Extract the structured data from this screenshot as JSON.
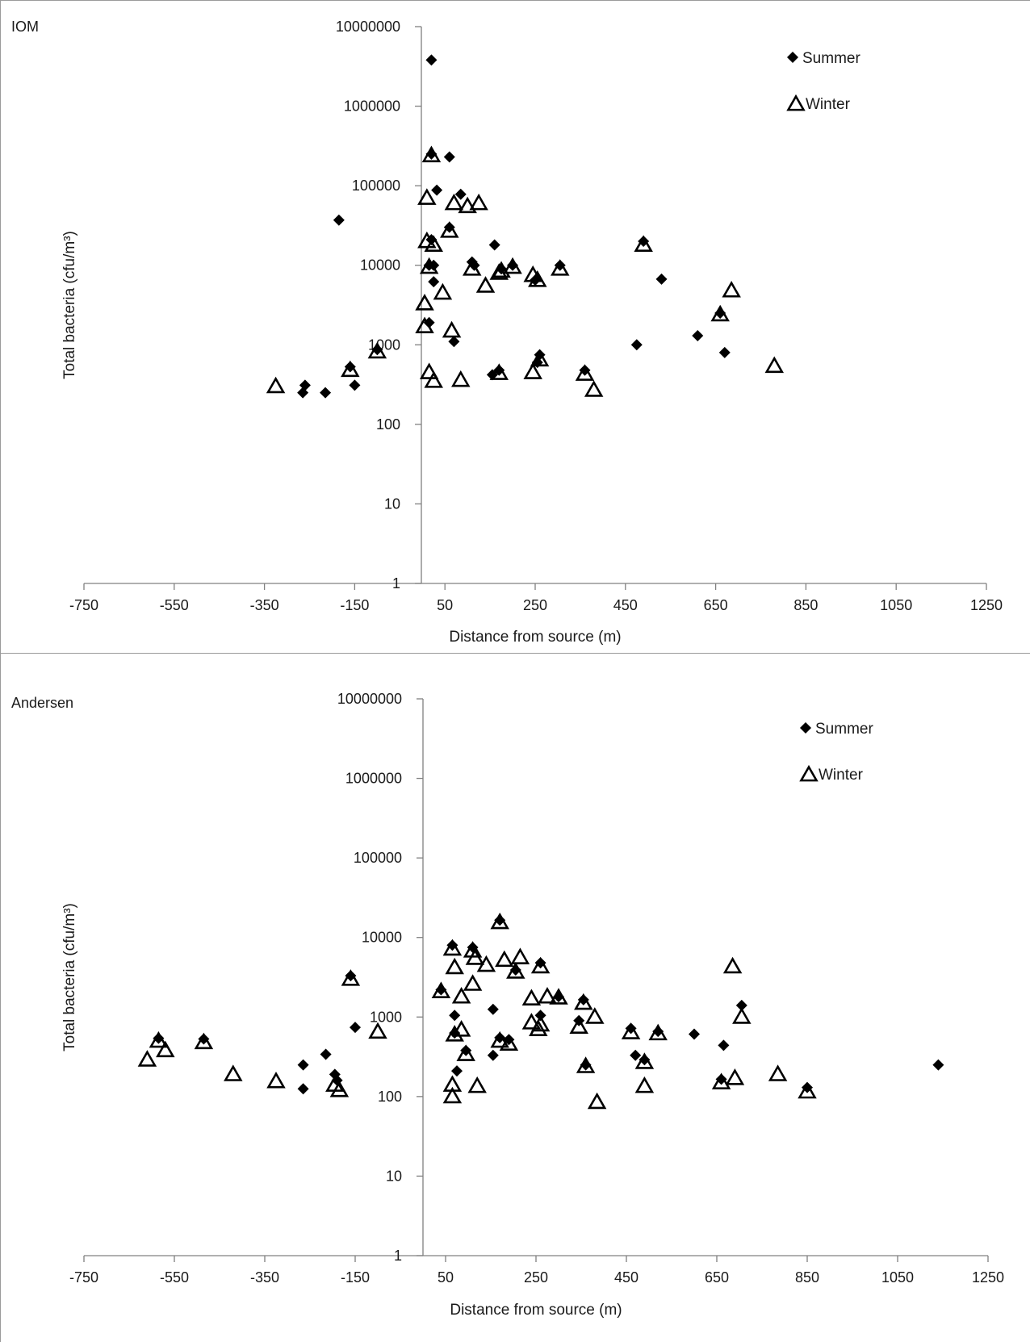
{
  "chart_data": [
    {
      "type": "scatter",
      "panel_label": "IOM",
      "xlabel": "Distance from source (m)",
      "ylabel": "Total bacteria (cfu/m³)",
      "y_scale": "log",
      "xlim": [
        -750,
        1250
      ],
      "ylim": [
        1,
        10000000
      ],
      "x_ticks": [
        "-750",
        "-550",
        "-350",
        "-150",
        "50",
        "250",
        "450",
        "650",
        "850",
        "1050",
        "1250"
      ],
      "y_ticks": [
        "1",
        "10",
        "100",
        "1000",
        "10000",
        "100000",
        "1000000",
        "10000000"
      ],
      "legend_position": "top-right",
      "series": [
        {
          "name": "Summer",
          "marker": "diamond",
          "color": "#000000",
          "points": [
            [
              20,
              3800000
            ],
            [
              20,
              250000
            ],
            [
              60,
              230000
            ],
            [
              32,
              88000
            ],
            [
              85,
              78000
            ],
            [
              60,
              30000
            ],
            [
              -185,
              37000
            ],
            [
              20,
              21000
            ],
            [
              15,
              10000
            ],
            [
              25,
              10000
            ],
            [
              110,
              11000
            ],
            [
              115,
              10000
            ],
            [
              160,
              18000
            ],
            [
              175,
              9000
            ],
            [
              200,
              10000
            ],
            [
              250,
              6500
            ],
            [
              305,
              10000
            ],
            [
              490,
              20000
            ],
            [
              530,
              6700
            ],
            [
              25,
              6200
            ],
            [
              15,
              1900
            ],
            [
              70,
              1100
            ],
            [
              155,
              420
            ],
            [
              170,
              480
            ],
            [
              260,
              750
            ],
            [
              255,
              600
            ],
            [
              360,
              480
            ],
            [
              475,
              1000
            ],
            [
              610,
              1300
            ],
            [
              660,
              2500
            ],
            [
              670,
              800
            ],
            [
              -100,
              870
            ],
            [
              -160,
              530
            ],
            [
              -260,
              310
            ],
            [
              -265,
              250
            ],
            [
              -215,
              250
            ],
            [
              -150,
              310
            ]
          ]
        },
        {
          "name": "Winter",
          "marker": "triangle-open",
          "color": "#000000",
          "points": [
            [
              20,
              240000
            ],
            [
              10,
              70000
            ],
            [
              70,
              60000
            ],
            [
              100,
              55000
            ],
            [
              125,
              60000
            ],
            [
              60,
              27000
            ],
            [
              10,
              20000
            ],
            [
              25,
              18000
            ],
            [
              15,
              9500
            ],
            [
              110,
              9000
            ],
            [
              170,
              8000
            ],
            [
              175,
              8500
            ],
            [
              200,
              9500
            ],
            [
              245,
              7500
            ],
            [
              255,
              6500
            ],
            [
              305,
              9000
            ],
            [
              490,
              18000
            ],
            [
              140,
              5500
            ],
            [
              45,
              4500
            ],
            [
              5,
              3300
            ],
            [
              5,
              1700
            ],
            [
              65,
              1500
            ],
            [
              660,
              2400
            ],
            [
              685,
              4800
            ],
            [
              -100,
              820
            ],
            [
              -160,
              480
            ],
            [
              -325,
              300
            ],
            [
              15,
              450
            ],
            [
              25,
              350
            ],
            [
              85,
              360
            ],
            [
              170,
              440
            ],
            [
              245,
              450
            ],
            [
              260,
              650
            ],
            [
              360,
              430
            ],
            [
              380,
              270
            ],
            [
              780,
              540
            ]
          ]
        }
      ]
    },
    {
      "type": "scatter",
      "panel_label": "Andersen",
      "xlabel": "Distance from source (m)",
      "ylabel": "Total bacteria (cfu/m³)",
      "y_scale": "log",
      "xlim": [
        -750,
        1250
      ],
      "ylim": [
        1,
        10000000
      ],
      "x_ticks": [
        "-750",
        "-550",
        "-350",
        "-150",
        "50",
        "250",
        "450",
        "650",
        "850",
        "1050",
        "1250"
      ],
      "y_ticks": [
        "1",
        "10",
        "100",
        "1000",
        "10000",
        "100000",
        "1000000",
        "10000000"
      ],
      "legend_position": "top-right",
      "series": [
        {
          "name": "Summer",
          "marker": "diamond",
          "color": "#000000",
          "points": [
            [
              -585,
              540
            ],
            [
              -485,
              530
            ],
            [
              -265,
              250
            ],
            [
              -265,
              125
            ],
            [
              -215,
              340
            ],
            [
              -195,
              190
            ],
            [
              -190,
              160
            ],
            [
              -160,
              3300
            ],
            [
              -150,
              740
            ],
            [
              40,
              2200
            ],
            [
              65,
              8000
            ],
            [
              70,
              1050
            ],
            [
              70,
              630
            ],
            [
              75,
              210
            ],
            [
              95,
              380
            ],
            [
              110,
              7500
            ],
            [
              155,
              1250
            ],
            [
              155,
              330
            ],
            [
              170,
              16500
            ],
            [
              170,
              550
            ],
            [
              190,
              520
            ],
            [
              205,
              3900
            ],
            [
              260,
              4800
            ],
            [
              260,
              1050
            ],
            [
              300,
              1800
            ],
            [
              345,
              900
            ],
            [
              355,
              1650
            ],
            [
              360,
              250
            ],
            [
              460,
              720
            ],
            [
              470,
              330
            ],
            [
              490,
              290
            ],
            [
              520,
              660
            ],
            [
              600,
              610
            ],
            [
              660,
              165
            ],
            [
              665,
              440
            ],
            [
              705,
              1400
            ],
            [
              850,
              130
            ],
            [
              1140,
              250
            ]
          ]
        },
        {
          "name": "Winter",
          "marker": "triangle-open",
          "color": "#000000",
          "points": [
            [
              -610,
              290
            ],
            [
              -585,
              500
            ],
            [
              -570,
              380
            ],
            [
              -485,
              480
            ],
            [
              -420,
              190
            ],
            [
              -325,
              155
            ],
            [
              -195,
              140
            ],
            [
              -185,
              120
            ],
            [
              -160,
              3000
            ],
            [
              -100,
              650
            ],
            [
              40,
              2100
            ],
            [
              65,
              7200
            ],
            [
              65,
              140
            ],
            [
              65,
              100
            ],
            [
              70,
              4200
            ],
            [
              70,
              600
            ],
            [
              85,
              690
            ],
            [
              85,
              1800
            ],
            [
              95,
              340
            ],
            [
              110,
              6800
            ],
            [
              110,
              2600
            ],
            [
              115,
              5500
            ],
            [
              120,
              135
            ],
            [
              140,
              4500
            ],
            [
              170,
              15500
            ],
            [
              170,
              500
            ],
            [
              180,
              5200
            ],
            [
              190,
              460
            ],
            [
              205,
              3700
            ],
            [
              215,
              5600
            ],
            [
              240,
              1700
            ],
            [
              240,
              850
            ],
            [
              255,
              700
            ],
            [
              260,
              4300
            ],
            [
              260,
              800
            ],
            [
              275,
              1800
            ],
            [
              300,
              1750
            ],
            [
              345,
              750
            ],
            [
              355,
              1500
            ],
            [
              360,
              240
            ],
            [
              380,
              1000
            ],
            [
              385,
              85
            ],
            [
              460,
              640
            ],
            [
              490,
              270
            ],
            [
              490,
              135
            ],
            [
              520,
              620
            ],
            [
              660,
              150
            ],
            [
              685,
              4300
            ],
            [
              690,
              170
            ],
            [
              705,
              1000
            ],
            [
              785,
              190
            ],
            [
              850,
              115
            ]
          ]
        }
      ]
    }
  ]
}
